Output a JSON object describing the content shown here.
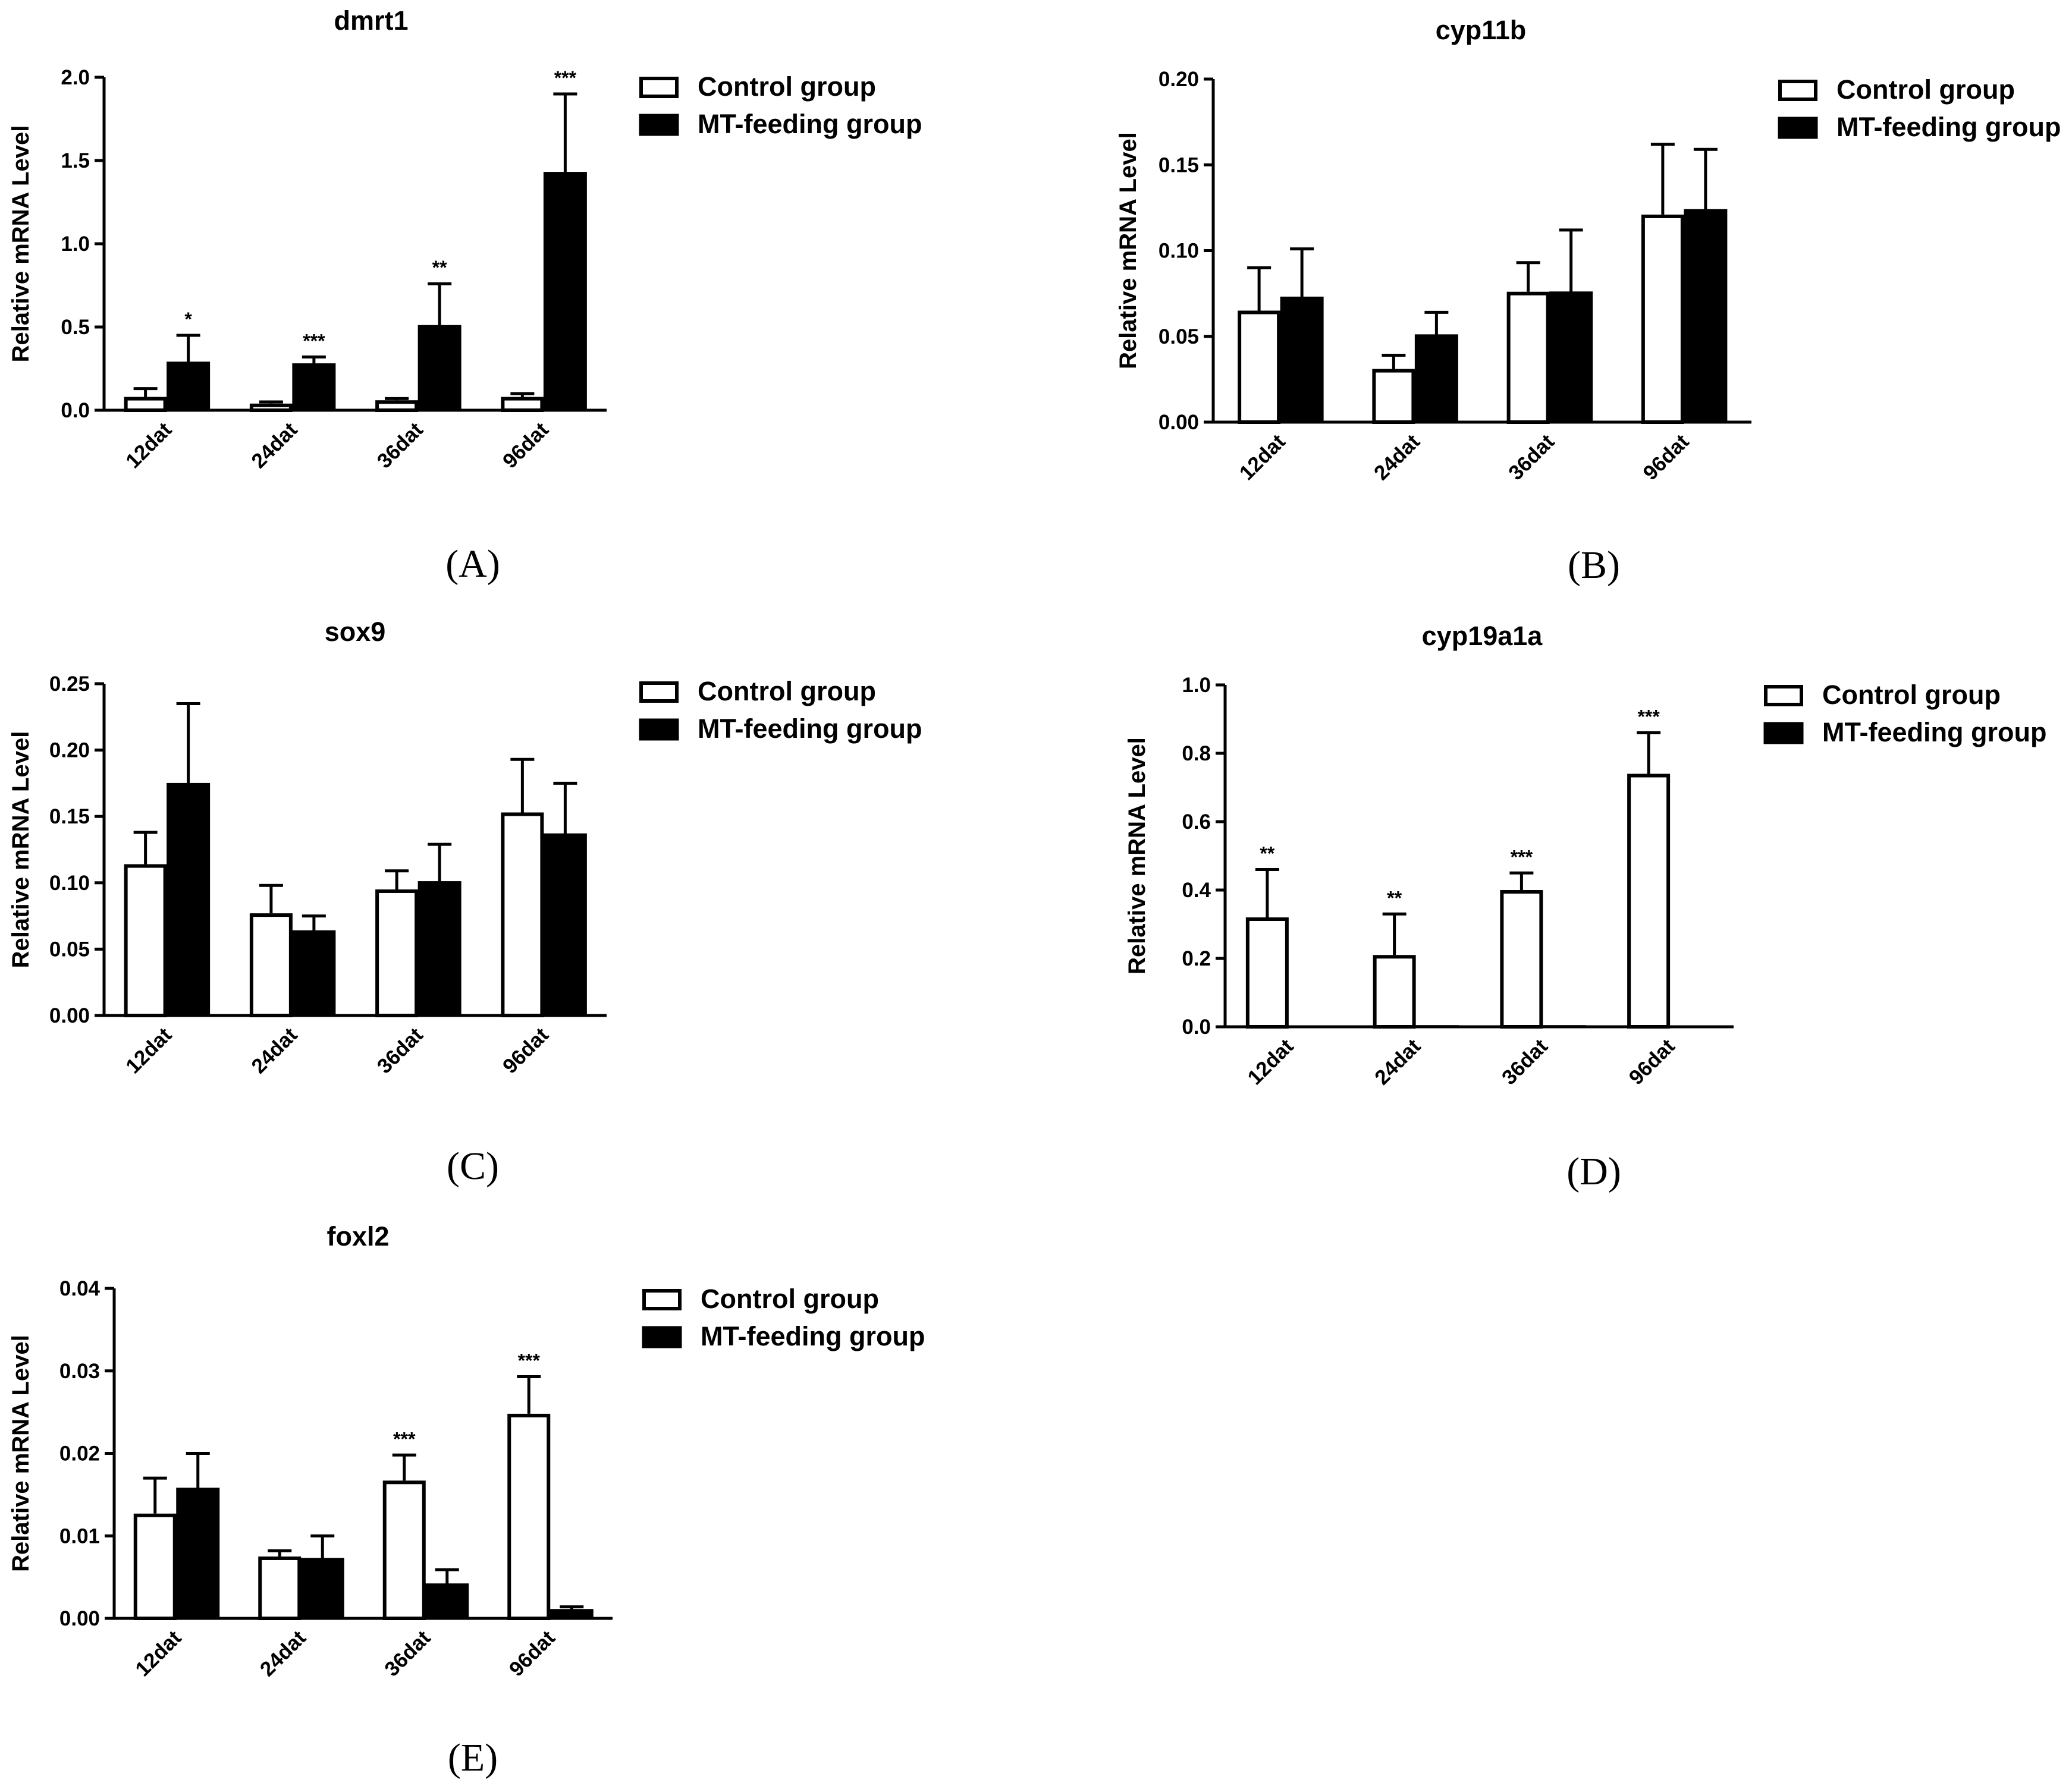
{
  "chart_data": [
    {
      "type": "bar",
      "panel": "(A)",
      "title": "dmrt1",
      "ylabel": "Relative mRNA Level",
      "xlabel": "",
      "categories": [
        "12dat",
        "24dat",
        "36dat",
        "96dat"
      ],
      "ylim": [
        0,
        2.0
      ],
      "yticks": [
        "0.0",
        "0.5",
        "1.0",
        "1.5",
        "2.0"
      ],
      "ytick_values": [
        0,
        0.5,
        1.0,
        1.5,
        2.0
      ],
      "series": [
        {
          "name": "Control group",
          "values": [
            0.08,
            0.04,
            0.06,
            0.08
          ],
          "errors": [
            0.05,
            0.01,
            0.01,
            0.02
          ]
        },
        {
          "name": "MT-feeding group",
          "values": [
            0.29,
            0.28,
            0.51,
            1.43
          ],
          "errors": [
            0.16,
            0.04,
            0.25,
            0.47
          ]
        }
      ],
      "significance": [
        "*",
        "***",
        "**",
        "***"
      ],
      "legend": [
        "Control group",
        "MT-feeding group"
      ],
      "legend_position": "right"
    },
    {
      "type": "bar",
      "panel": "(B)",
      "title": "cyp11b",
      "ylabel": "Relative mRNA Level",
      "xlabel": "",
      "categories": [
        "12dat",
        "24dat",
        "36dat",
        "96dat"
      ],
      "ylim": [
        0,
        0.2
      ],
      "yticks": [
        "0.00",
        "0.05",
        "0.10",
        "0.15",
        "0.20"
      ],
      "ytick_values": [
        0,
        0.05,
        0.1,
        0.15,
        0.2
      ],
      "series": [
        {
          "name": "Control group",
          "values": [
            0.065,
            0.031,
            0.076,
            0.121
          ],
          "errors": [
            0.025,
            0.008,
            0.017,
            0.041
          ]
        },
        {
          "name": "MT-feeding group",
          "values": [
            0.073,
            0.051,
            0.076,
            0.124
          ],
          "errors": [
            0.028,
            0.013,
            0.036,
            0.035
          ]
        }
      ],
      "significance": [
        "",
        "",
        "",
        ""
      ],
      "legend": [
        "Control group",
        "MT-feeding group"
      ],
      "legend_position": "right"
    },
    {
      "type": "bar",
      "panel": "(C)",
      "title": "sox9",
      "ylabel": "Relative mRNA Level",
      "xlabel": "",
      "categories": [
        "12dat",
        "24dat",
        "36dat",
        "96dat"
      ],
      "ylim": [
        0,
        0.25
      ],
      "yticks": [
        "0.00",
        "0.05",
        "0.10",
        "0.15",
        "0.20",
        "0.25"
      ],
      "ytick_values": [
        0,
        0.05,
        0.1,
        0.15,
        0.2,
        0.25
      ],
      "series": [
        {
          "name": "Control group",
          "values": [
            0.114,
            0.077,
            0.095,
            0.153
          ],
          "errors": [
            0.024,
            0.021,
            0.014,
            0.04
          ]
        },
        {
          "name": "MT-feeding group",
          "values": [
            0.175,
            0.064,
            0.101,
            0.137
          ],
          "errors": [
            0.06,
            0.011,
            0.028,
            0.038
          ]
        }
      ],
      "significance": [
        "",
        "",
        "",
        ""
      ],
      "legend": [
        "Control group",
        "MT-feeding group"
      ],
      "legend_position": "right"
    },
    {
      "type": "bar",
      "panel": "(D)",
      "title": "cyp19a1a",
      "ylabel": "Relative mRNA Level",
      "xlabel": "",
      "categories": [
        "12dat",
        "24dat",
        "36dat",
        "96dat"
      ],
      "ylim": [
        0,
        1.0
      ],
      "yticks": [
        "0.0",
        "0.2",
        "0.4",
        "0.6",
        "0.8",
        "1.0"
      ],
      "ytick_values": [
        0,
        0.2,
        0.4,
        0.6,
        0.8,
        1.0
      ],
      "series": [
        {
          "name": "Control group",
          "values": [
            0.32,
            0.21,
            0.4,
            0.74
          ],
          "errors": [
            0.14,
            0.12,
            0.05,
            0.12
          ]
        },
        {
          "name": "MT-feeding group",
          "values": [
            0.0,
            0.004,
            0.004,
            0.0
          ],
          "errors": [
            0,
            0,
            0,
            0
          ]
        }
      ],
      "significance": [
        "**",
        "**",
        "***",
        "***"
      ],
      "legend": [
        "Control group",
        "MT-feeding group"
      ],
      "legend_position": "right"
    },
    {
      "type": "bar",
      "panel": "(E)",
      "title": "foxl2",
      "ylabel": "Relative mRNA Level",
      "xlabel": "",
      "categories": [
        "12dat",
        "24dat",
        "36dat",
        "96dat"
      ],
      "ylim": [
        0,
        0.04
      ],
      "yticks": [
        "0.00",
        "0.01",
        "0.02",
        "0.03",
        "0.04"
      ],
      "ytick_values": [
        0,
        0.01,
        0.02,
        0.03,
        0.04
      ],
      "series": [
        {
          "name": "Control group",
          "values": [
            0.0127,
            0.0075,
            0.0167,
            0.0248
          ],
          "errors": [
            0.0043,
            0.0007,
            0.0031,
            0.0045
          ]
        },
        {
          "name": "MT-feeding group",
          "values": [
            0.0158,
            0.0073,
            0.0042,
            0.0011
          ],
          "errors": [
            0.0042,
            0.0027,
            0.0017,
            0.0003
          ]
        }
      ],
      "significance": [
        "",
        "",
        "***",
        "***"
      ],
      "legend": [
        "Control group",
        "MT-feeding group"
      ],
      "legend_position": "right"
    }
  ]
}
